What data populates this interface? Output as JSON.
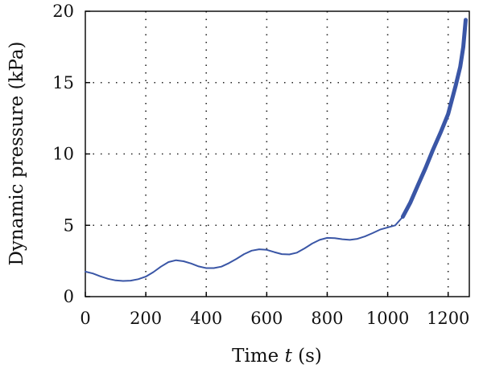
{
  "chart_data": {
    "type": "line",
    "title": "",
    "xlabel_prefix": "Time ",
    "xlabel_var": "t",
    "xlabel_suffix": " (s)",
    "ylabel": "Dynamic pressure (kPa)",
    "xlim": [
      0,
      1270
    ],
    "ylim": [
      0,
      20
    ],
    "xticks": [
      0,
      200,
      400,
      600,
      800,
      1000,
      1200
    ],
    "yticks": [
      0,
      5,
      10,
      15,
      20
    ],
    "grid": true,
    "line_color": "#3a56a6",
    "series": [
      {
        "x": [
          0,
          25,
          50,
          75,
          100,
          125,
          150,
          175,
          200,
          225,
          250,
          275,
          300,
          325,
          350,
          375,
          400,
          425,
          450,
          475,
          500,
          525,
          550,
          575,
          600,
          625,
          650,
          675,
          700,
          725,
          750,
          775,
          800,
          825,
          850,
          875,
          900,
          925,
          950,
          975,
          1000,
          1025,
          1050,
          1075,
          1100,
          1125,
          1150,
          1175,
          1200,
          1225,
          1240,
          1250,
          1258
        ],
        "y": [
          1.75,
          1.62,
          1.42,
          1.25,
          1.14,
          1.1,
          1.12,
          1.22,
          1.4,
          1.72,
          2.1,
          2.42,
          2.55,
          2.48,
          2.32,
          2.12,
          2.0,
          2.0,
          2.1,
          2.35,
          2.65,
          2.98,
          3.22,
          3.32,
          3.28,
          3.12,
          2.98,
          2.96,
          3.08,
          3.38,
          3.72,
          3.98,
          4.12,
          4.1,
          4.02,
          3.98,
          4.05,
          4.22,
          4.45,
          4.7,
          4.85,
          5.0,
          5.6,
          6.6,
          7.8,
          9.0,
          10.3,
          11.5,
          12.8,
          14.8,
          16.1,
          17.5,
          19.4
        ]
      }
    ]
  }
}
